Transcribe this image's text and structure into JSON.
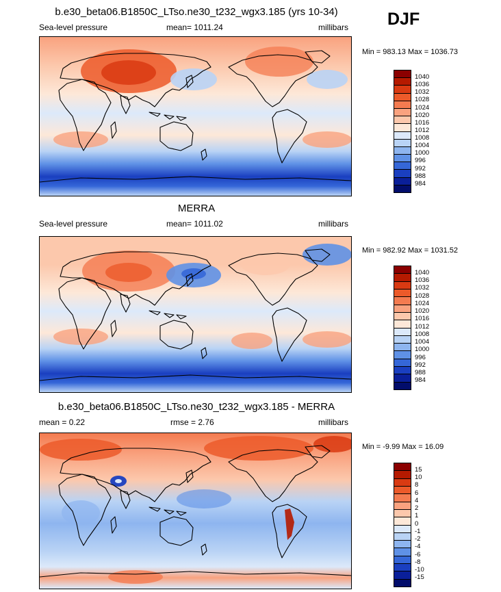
{
  "season": "DJF",
  "panels": [
    {
      "title": "b.e30_beta06.B1850C_LTso.ne30_t232_wgx3.185 (yrs 10-34)",
      "left_label": "Sea-level pressure",
      "center_label": "mean= 1011.24",
      "right_label": "millibars",
      "minmax": "Min = 983.13 Max = 1036.73",
      "colorbar": {
        "labels": [
          "1040",
          "1036",
          "1032",
          "1028",
          "1024",
          "1020",
          "1016",
          "1012",
          "1008",
          "1004",
          "1000",
          "996",
          "992",
          "988",
          "984"
        ],
        "colors": [
          "#8b0000",
          "#b51a00",
          "#d93a12",
          "#ec5a2a",
          "#f47b50",
          "#f9a27f",
          "#fcc8ac",
          "#fde8d8",
          "#dce9fa",
          "#b9d3f5",
          "#8eb5ef",
          "#5f91e6",
          "#3567d8",
          "#1a3fc0",
          "#0a1f99",
          "#020d6b"
        ]
      }
    },
    {
      "title": "MERRA",
      "left_label": "Sea-level pressure",
      "center_label": "mean= 1011.02",
      "right_label": "millibars",
      "minmax": "Min = 982.92 Max = 1031.52",
      "colorbar": {
        "labels": [
          "1040",
          "1036",
          "1032",
          "1028",
          "1024",
          "1020",
          "1016",
          "1012",
          "1008",
          "1004",
          "1000",
          "996",
          "992",
          "988",
          "984"
        ],
        "colors": [
          "#8b0000",
          "#b51a00",
          "#d93a12",
          "#ec5a2a",
          "#f47b50",
          "#f9a27f",
          "#fcc8ac",
          "#fde8d8",
          "#dce9fa",
          "#b9d3f5",
          "#8eb5ef",
          "#5f91e6",
          "#3567d8",
          "#1a3fc0",
          "#0a1f99",
          "#020d6b"
        ]
      }
    },
    {
      "title": "b.e30_beta06.B1850C_LTso.ne30_t232_wgx3.185 - MERRA",
      "left_label": "mean =   0.22",
      "center_label": "rmse =   2.76",
      "right_label": "millibars",
      "minmax": "Min =  -9.99 Max =  16.09",
      "colorbar": {
        "labels": [
          "15",
          "10",
          "8",
          "6",
          "4",
          "2",
          "1",
          "0",
          "-1",
          "-2",
          "-4",
          "-6",
          "-8",
          "-10",
          "-15"
        ],
        "colors": [
          "#8b0000",
          "#b51a00",
          "#d93a12",
          "#ec5a2a",
          "#f47b50",
          "#f9a27f",
          "#fcc8ac",
          "#fde8d8",
          "#dce9fa",
          "#b9d3f5",
          "#8eb5ef",
          "#5f91e6",
          "#3567d8",
          "#1a3fc0",
          "#0a1f99",
          "#020d6b"
        ]
      }
    }
  ]
}
